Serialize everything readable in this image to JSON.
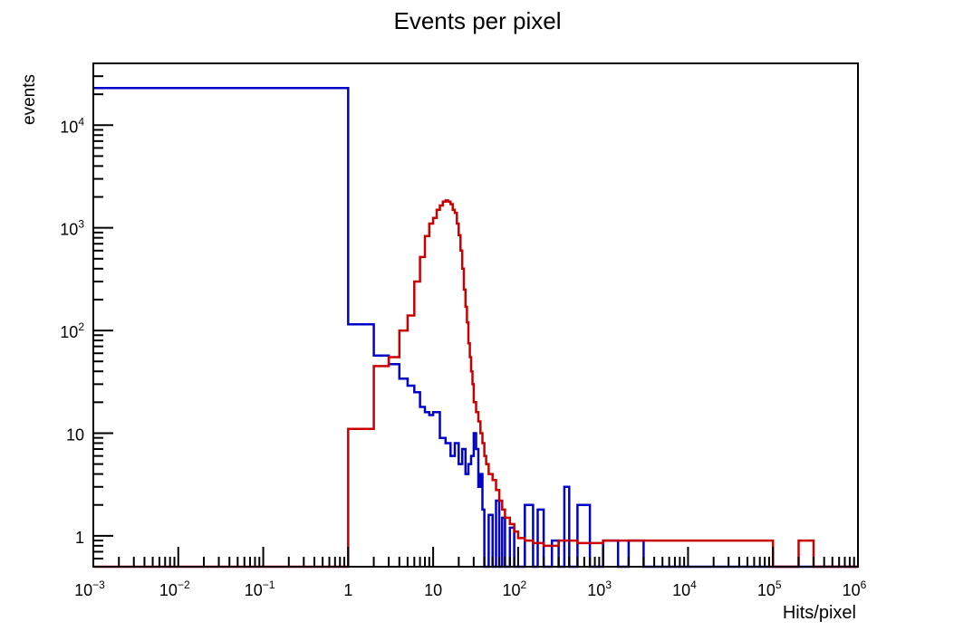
{
  "chart_data": {
    "type": "histogram-step",
    "title": "Events per pixel",
    "xlabel": "Hits/pixel",
    "ylabel": "events",
    "xscale": "log",
    "yscale": "log",
    "xlim": [
      0.001,
      1000000
    ],
    "ylim": [
      0.5,
      40000
    ],
    "legend": "none",
    "grid": false,
    "x_ticks": [
      {
        "value": 0.001,
        "base": "10",
        "exp": "−3"
      },
      {
        "value": 0.01,
        "base": "10",
        "exp": "−2"
      },
      {
        "value": 0.1,
        "base": "10",
        "exp": "−1"
      },
      {
        "value": 1,
        "base": "1",
        "exp": ""
      },
      {
        "value": 10,
        "base": "10",
        "exp": ""
      },
      {
        "value": 100,
        "base": "10",
        "exp": "2"
      },
      {
        "value": 1000,
        "base": "10",
        "exp": "3"
      },
      {
        "value": 10000,
        "base": "10",
        "exp": "4"
      },
      {
        "value": 100000,
        "base": "10",
        "exp": "5"
      },
      {
        "value": 1000000,
        "base": "10",
        "exp": "6"
      }
    ],
    "y_ticks": [
      {
        "value": 1,
        "base": "1",
        "exp": ""
      },
      {
        "value": 10,
        "base": "10",
        "exp": ""
      },
      {
        "value": 100,
        "base": "10",
        "exp": "2"
      },
      {
        "value": 1000,
        "base": "10",
        "exp": "3"
      },
      {
        "value": 10000,
        "base": "10",
        "exp": "4"
      }
    ],
    "series": [
      {
        "color": "#0000c8",
        "step_x": [
          0.001,
          1,
          2,
          3,
          4,
          5,
          6,
          7,
          8,
          9,
          10,
          12,
          14,
          16,
          18,
          20,
          22,
          24,
          26,
          28,
          30,
          32,
          34,
          36,
          38,
          40,
          45,
          50,
          55,
          60,
          65,
          70,
          80,
          90,
          100,
          120,
          150,
          170,
          200,
          250,
          300,
          350,
          400,
          500,
          700,
          1000,
          1500,
          2000,
          3000,
          1000000
        ],
        "step_y": [
          23000,
          115,
          57,
          47,
          34,
          29,
          25,
          18,
          16,
          15,
          16,
          9,
          8,
          6,
          8,
          5,
          7,
          4,
          5,
          6,
          10,
          7,
          3,
          4,
          1.8,
          0.5,
          1.6,
          0.5,
          2.2,
          0.5,
          1.5,
          0.5,
          1.2,
          0.5,
          0.5,
          2,
          0.5,
          1.8,
          0.5,
          0.9,
          0.5,
          3,
          0.5,
          2,
          0.5,
          0.9,
          0.5,
          0.9,
          0.5
        ]
      },
      {
        "color": "#c80000",
        "step_x": [
          0.001,
          1,
          2,
          3,
          4,
          5,
          6,
          7,
          8,
          9,
          10,
          11,
          12,
          13,
          14,
          15,
          16,
          17,
          18,
          19,
          20,
          21,
          22,
          23,
          24,
          25,
          26,
          27,
          28,
          29,
          30,
          32,
          34,
          36,
          38,
          40,
          42,
          45,
          50,
          55,
          60,
          65,
          70,
          80,
          90,
          100,
          120,
          150,
          200,
          300,
          500,
          1000,
          3000,
          10000,
          50000,
          100000,
          200000,
          300000,
          1000000
        ],
        "step_y": [
          0.5,
          11,
          45,
          55,
          100,
          140,
          300,
          520,
          830,
          1100,
          1250,
          1500,
          1650,
          1800,
          1850,
          1800,
          1700,
          1500,
          1400,
          1100,
          850,
          600,
          400,
          250,
          170,
          120,
          75,
          55,
          40,
          30,
          20,
          16,
          13,
          10,
          8,
          6,
          5,
          4,
          3.5,
          2.8,
          2.2,
          1.8,
          1.5,
          1.3,
          1.1,
          0.95,
          0.9,
          0.85,
          0.8,
          0.9,
          0.85,
          0.9,
          0.9,
          0.9,
          0.9,
          0.5,
          0.9,
          0.5
        ]
      }
    ]
  }
}
